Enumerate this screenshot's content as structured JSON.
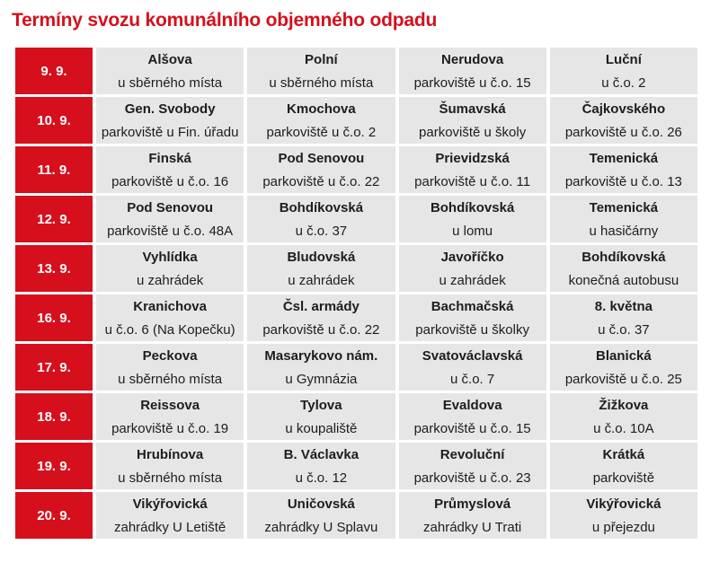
{
  "title": "Termíny svozu komunálního objemného odpadu",
  "colors": {
    "accent": "#d5101c",
    "cell_bg": "#e6e6e7"
  },
  "rows": [
    {
      "date": "9. 9.",
      "locations": [
        {
          "name": "Alšova",
          "detail": "u sběrného místa"
        },
        {
          "name": "Polní",
          "detail": "u sběrného místa"
        },
        {
          "name": "Nerudova",
          "detail": "parkoviště u č.o. 15"
        },
        {
          "name": "Luční",
          "detail": "u č.o. 2"
        }
      ]
    },
    {
      "date": "10. 9.",
      "locations": [
        {
          "name": "Gen. Svobody",
          "detail": "parkoviště u Fin. úřadu"
        },
        {
          "name": "Kmochova",
          "detail": "parkoviště u č.o. 2"
        },
        {
          "name": "Šumavská",
          "detail": "parkoviště u školy"
        },
        {
          "name": "Čajkovského",
          "detail": "parkoviště u č.o. 26"
        }
      ]
    },
    {
      "date": "11. 9.",
      "locations": [
        {
          "name": "Finská",
          "detail": "parkoviště u č.o. 16"
        },
        {
          "name": "Pod Senovou",
          "detail": "parkoviště u č.o. 22"
        },
        {
          "name": "Prievidzská",
          "detail": "parkoviště u č.o. 11"
        },
        {
          "name": "Temenická",
          "detail": "parkoviště u č.o. 13"
        }
      ]
    },
    {
      "date": "12. 9.",
      "locations": [
        {
          "name": "Pod Senovou",
          "detail": "parkoviště u č.o. 48A"
        },
        {
          "name": "Bohdíkovská",
          "detail": "u č.o. 37"
        },
        {
          "name": "Bohdíkovská",
          "detail": "u lomu"
        },
        {
          "name": "Temenická",
          "detail": "u hasičárny"
        }
      ]
    },
    {
      "date": "13. 9.",
      "locations": [
        {
          "name": "Vyhlídka",
          "detail": "u zahrádek"
        },
        {
          "name": "Bludovská",
          "detail": "u zahrádek"
        },
        {
          "name": "Javoříčko",
          "detail": "u zahrádek"
        },
        {
          "name": "Bohdíkovská",
          "detail": "konečná autobusu"
        }
      ]
    },
    {
      "date": "16. 9.",
      "locations": [
        {
          "name": "Kranichova",
          "detail": "u č.o. 6 (Na Kopečku)"
        },
        {
          "name": "Čsl. armády",
          "detail": "parkoviště u č.o. 22"
        },
        {
          "name": "Bachmačská",
          "detail": "parkoviště u školky"
        },
        {
          "name": "8. května",
          "detail": "u č.o. 37"
        }
      ]
    },
    {
      "date": "17. 9.",
      "locations": [
        {
          "name": "Peckova",
          "detail": "u sběrného místa"
        },
        {
          "name": "Masarykovo nám.",
          "detail": "u Gymnázia"
        },
        {
          "name": "Svatováclavská",
          "detail": "u č.o. 7"
        },
        {
          "name": "Blanická",
          "detail": "parkoviště u č.o. 25"
        }
      ]
    },
    {
      "date": "18. 9.",
      "locations": [
        {
          "name": "Reissova",
          "detail": "parkoviště u č.o. 19"
        },
        {
          "name": "Tylova",
          "detail": "u koupaliště"
        },
        {
          "name": "Evaldova",
          "detail": "parkoviště u č.o. 15"
        },
        {
          "name": "Žižkova",
          "detail": "u č.o. 10A"
        }
      ]
    },
    {
      "date": "19. 9.",
      "locations": [
        {
          "name": "Hrubínova",
          "detail": "u sběrného místa"
        },
        {
          "name": "B. Václavka",
          "detail": "u č.o. 12"
        },
        {
          "name": "Revoluční",
          "detail": "parkoviště u č.o. 23"
        },
        {
          "name": "Krátká",
          "detail": "parkoviště"
        }
      ]
    },
    {
      "date": "20. 9.",
      "locations": [
        {
          "name": "Vikýřovická",
          "detail": "zahrádky U Letiště"
        },
        {
          "name": "Uničovská",
          "detail": "zahrádky U Splavu"
        },
        {
          "name": "Průmyslová",
          "detail": "zahrádky U Trati"
        },
        {
          "name": "Vikýřovická",
          "detail": "u přejezdu"
        }
      ]
    }
  ]
}
